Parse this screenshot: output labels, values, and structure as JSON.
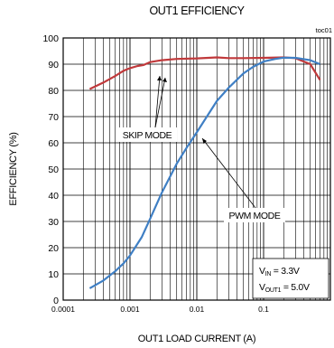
{
  "chart_data": {
    "type": "line",
    "title": "OUT1 EFFICIENCY",
    "corner_label": "toc01",
    "xlabel": "OUT1 LOAD CURRENT (A)",
    "ylabel": "EFFICIENCY (%)",
    "x_scale": "log",
    "xlim": [
      0.0001,
      1
    ],
    "ylim": [
      0,
      100
    ],
    "grid": true,
    "x_ticks": [
      "0.0001",
      "0.001",
      "0.01",
      "0.1"
    ],
    "y_ticks": [
      0,
      10,
      20,
      30,
      40,
      50,
      60,
      70,
      80,
      90,
      100
    ],
    "series": [
      {
        "name": "SKIP MODE",
        "color": "#c0393b",
        "x": [
          0.00025,
          0.0004,
          0.0006,
          0.0008,
          0.001,
          0.0013,
          0.0016,
          0.002,
          0.003,
          0.005,
          0.01,
          0.02,
          0.03,
          0.05,
          0.1,
          0.2,
          0.3,
          0.5,
          0.7
        ],
        "y": [
          80.5,
          83,
          85.5,
          87.5,
          88.5,
          89.3,
          89.7,
          90.8,
          91.5,
          92,
          92.2,
          92.6,
          92.3,
          92.3,
          92.4,
          92.6,
          92.3,
          90,
          84
        ]
      },
      {
        "name": "PWM MODE",
        "color": "#3f7fc4",
        "x": [
          0.00025,
          0.0004,
          0.0006,
          0.0008,
          0.001,
          0.0015,
          0.002,
          0.003,
          0.005,
          0.007,
          0.01,
          0.015,
          0.02,
          0.03,
          0.05,
          0.07,
          0.1,
          0.15,
          0.2,
          0.3,
          0.5,
          0.7
        ],
        "y": [
          4.5,
          7.5,
          11,
          14,
          17,
          24,
          31,
          41,
          52,
          58,
          64,
          71,
          76,
          81,
          86.5,
          89,
          91,
          92,
          92.5,
          92.4,
          91.5,
          90
        ]
      }
    ],
    "annotations": {
      "skip_label": "SKIP MODE",
      "pwm_label": "PWM MODE"
    },
    "conditions": [
      {
        "symbol": "V",
        "sub": "IN",
        "value": " = 3.3V"
      },
      {
        "symbol": "V",
        "sub": "OUT1",
        "value": " = 5.0V"
      }
    ]
  }
}
